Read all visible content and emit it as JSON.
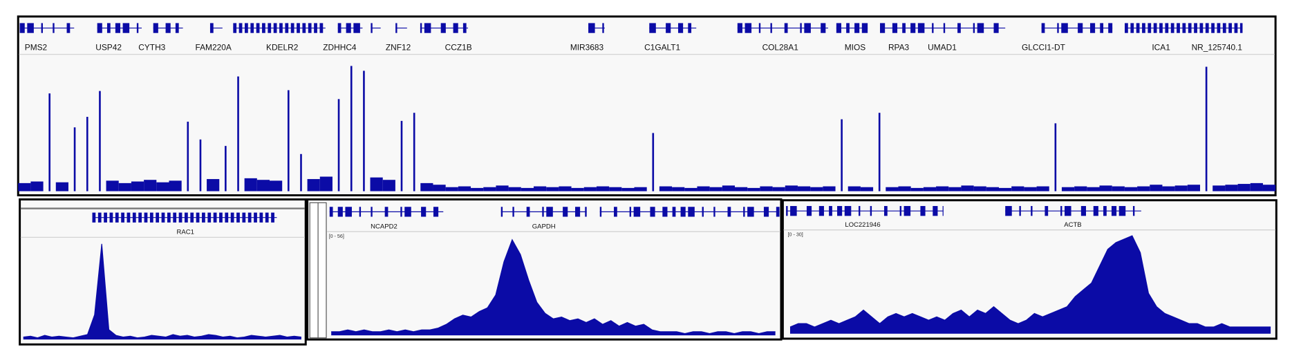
{
  "top_panel": {
    "genes": [
      "PMS2",
      "USP42",
      "CYTH3",
      "FAM220A",
      "KDELR2",
      "ZDHHC4",
      "ZNF12",
      "CCZ1B",
      "MIR3683",
      "C1GALT1",
      "COL28A1",
      "MIOS",
      "RPA3",
      "UMAD1",
      "GLCCI1-DT",
      "ICA1",
      "NR_125740.1"
    ],
    "coverage": [
      10,
      12,
      121,
      11,
      79,
      92,
      124,
      13,
      10,
      12,
      14,
      11,
      13,
      86,
      64,
      15,
      56,
      142,
      16,
      14,
      13,
      125,
      46,
      15,
      18,
      114,
      155,
      149,
      17,
      14,
      87,
      97,
      10,
      8,
      5,
      6,
      4,
      5,
      7,
      5,
      4,
      6,
      5,
      6,
      4,
      5,
      6,
      5,
      4,
      5,
      72,
      6,
      5,
      4,
      6,
      5,
      7,
      5,
      4,
      6,
      5,
      7,
      6,
      5,
      6,
      89,
      6,
      5,
      97,
      5,
      6,
      4,
      5,
      6,
      5,
      7,
      6,
      5,
      4,
      6,
      5,
      6,
      84,
      5,
      6,
      5,
      7,
      6,
      5,
      6,
      8,
      6,
      7,
      8,
      154,
      7,
      8,
      9,
      10,
      8
    ]
  },
  "bottom_panels": [
    {
      "genes": [
        "RAC1"
      ],
      "coverage": [
        3,
        4,
        2,
        5,
        3,
        4,
        3,
        2,
        4,
        6,
        30,
        116,
        12,
        5,
        3,
        4,
        2,
        3,
        5,
        4,
        3,
        6,
        4,
        5,
        3,
        4,
        6,
        5,
        3,
        4,
        2,
        3,
        5,
        4,
        3,
        4,
        5,
        3,
        4,
        3
      ]
    },
    {
      "genes": [
        "NCAPD2",
        "GAPDH"
      ],
      "range_label": "[0 - 56]",
      "ylim": [
        0,
        56
      ],
      "coverage": [
        2,
        2,
        3,
        2,
        3,
        2,
        2,
        3,
        2,
        3,
        2,
        3,
        3,
        4,
        6,
        9,
        11,
        10,
        13,
        15,
        22,
        40,
        52,
        44,
        30,
        18,
        12,
        9,
        10,
        8,
        9,
        7,
        9,
        6,
        8,
        5,
        7,
        5,
        6,
        3,
        2,
        2,
        2,
        1,
        2,
        2,
        1,
        2,
        2,
        1,
        2,
        2,
        1,
        2,
        2
      ]
    },
    {
      "genes": [
        "LOC221946",
        "ACTB"
      ],
      "range_label": "[0 - 30]",
      "ylim": [
        0,
        30
      ],
      "coverage": [
        2,
        3,
        3,
        2,
        3,
        4,
        3,
        4,
        5,
        7,
        5,
        3,
        5,
        6,
        5,
        6,
        5,
        4,
        5,
        4,
        6,
        7,
        5,
        7,
        6,
        8,
        6,
        4,
        3,
        4,
        6,
        5,
        6,
        7,
        8,
        11,
        13,
        15,
        20,
        25,
        27,
        28,
        29,
        24,
        12,
        8,
        6,
        5,
        4,
        3,
        3,
        2,
        2,
        3,
        2,
        2,
        2,
        2,
        2,
        2
      ]
    }
  ]
}
